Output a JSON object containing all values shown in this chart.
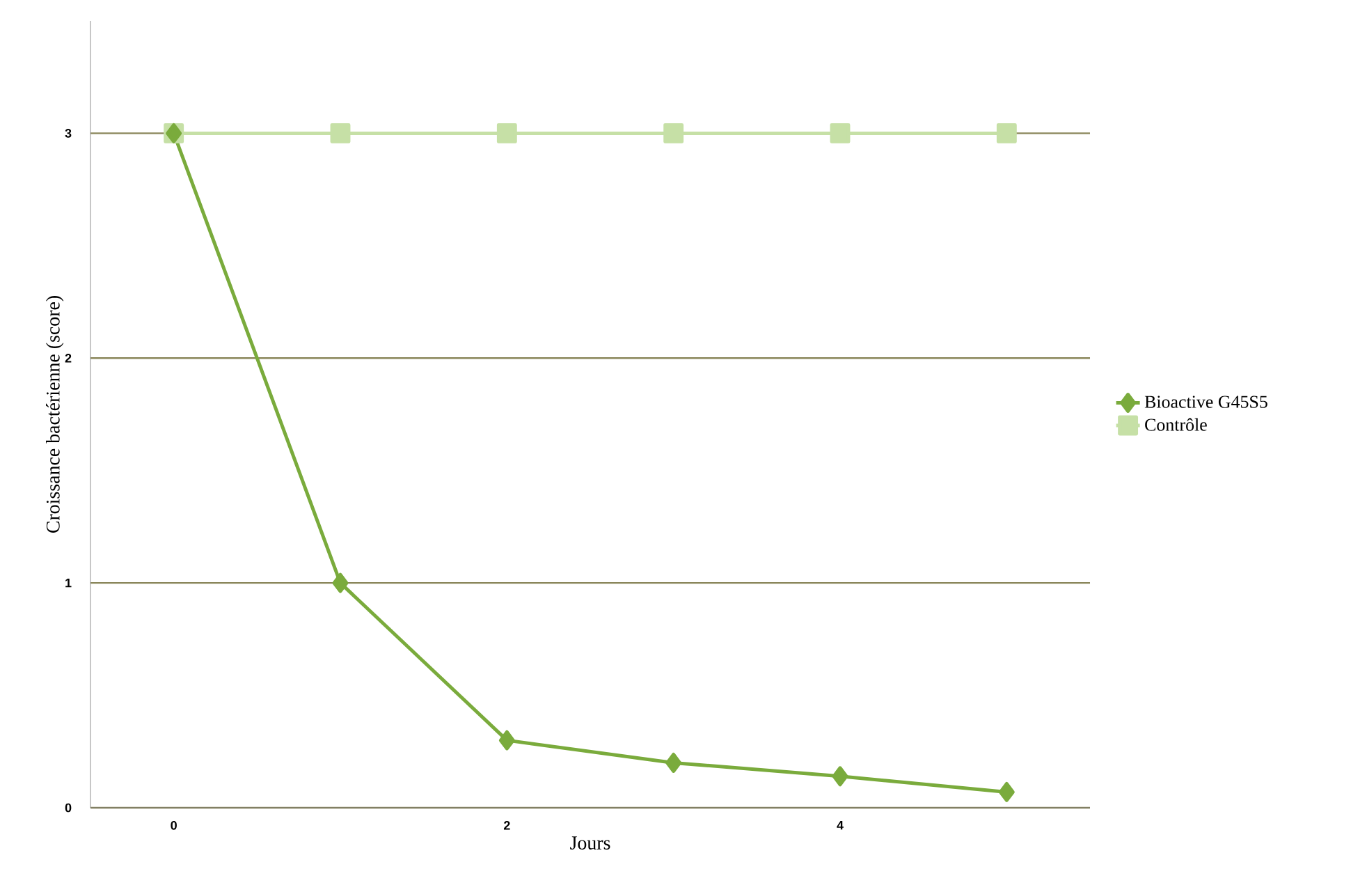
{
  "chart_data": {
    "type": "line",
    "xlabel": "Jours",
    "ylabel": "Croissance bactérienne (score)",
    "x": [
      0,
      1,
      2,
      3,
      4,
      5
    ],
    "series": [
      {
        "name": "Bioactive G45S5",
        "color": "#7aab3c",
        "marker": "diamond",
        "values": [
          3,
          1,
          0.3,
          0.2,
          0.14,
          0.07
        ]
      },
      {
        "name": "Contrôle",
        "color": "#c6e0a6",
        "marker": "square",
        "values": [
          3,
          3,
          3,
          3,
          3,
          3
        ]
      }
    ],
    "xlim": [
      -0.5,
      5.5
    ],
    "xticks": [
      0,
      2,
      4
    ],
    "ylim": [
      0,
      3.5
    ],
    "yticks": [
      0,
      1,
      2,
      3
    ],
    "grid": "y",
    "legend": "right",
    "line_style": "solid"
  }
}
